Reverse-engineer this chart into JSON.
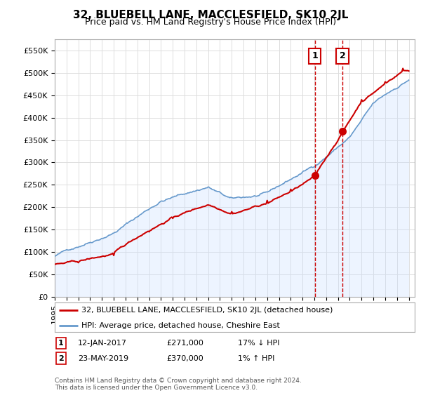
{
  "title": "32, BLUEBELL LANE, MACCLESFIELD, SK10 2JL",
  "subtitle": "Price paid vs. HM Land Registry's House Price Index (HPI)",
  "ylabel_ticks": [
    "£0",
    "£50K",
    "£100K",
    "£150K",
    "£200K",
    "£250K",
    "£300K",
    "£350K",
    "£400K",
    "£450K",
    "£500K",
    "£550K"
  ],
  "ytick_values": [
    0,
    50000,
    100000,
    150000,
    200000,
    250000,
    300000,
    350000,
    400000,
    450000,
    500000,
    550000
  ],
  "ylim": [
    0,
    575000
  ],
  "xlim_start": 1995.0,
  "xlim_end": 2025.5,
  "marker1_x": 2017.04,
  "marker1_y": 271000,
  "marker1_label": "1",
  "marker2_x": 2019.39,
  "marker2_y": 370000,
  "marker2_label": "2",
  "marker_box_color": "#cc0000",
  "red_line_color": "#cc0000",
  "blue_line_color": "#6699cc",
  "blue_fill_color": "#cce0ff",
  "legend_label_red": "32, BLUEBELL LANE, MACCLESFIELD, SK10 2JL (detached house)",
  "legend_label_blue": "HPI: Average price, detached house, Cheshire East",
  "note1_num": "1",
  "note1_date": "12-JAN-2017",
  "note1_price": "£271,000",
  "note1_hpi": "17% ↓ HPI",
  "note2_num": "2",
  "note2_date": "23-MAY-2019",
  "note2_price": "£370,000",
  "note2_hpi": "1% ↑ HPI",
  "footer": "Contains HM Land Registry data © Crown copyright and database right 2024.\nThis data is licensed under the Open Government Licence v3.0.",
  "bg_color": "#ffffff",
  "grid_color": "#dddddd",
  "title_fontsize": 11,
  "subtitle_fontsize": 9,
  "tick_fontsize": 8
}
